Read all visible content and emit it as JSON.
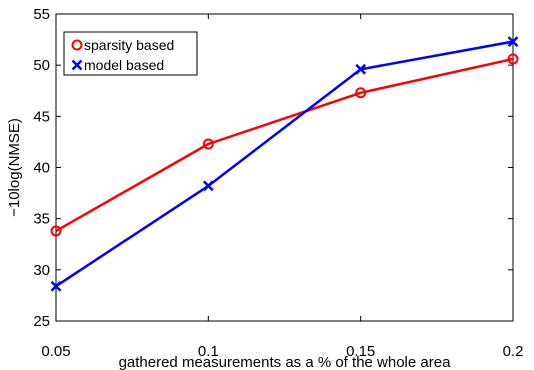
{
  "chart_data": {
    "type": "line",
    "title": "",
    "xlabel": "gathered measurements as a % of the whole area",
    "ylabel": "−10log(NMSE)",
    "x": [
      0.05,
      0.1,
      0.15,
      0.2
    ],
    "x_tick_labels": [
      "0.05",
      "0.1",
      "0.15",
      "0.2"
    ],
    "y_tick_labels": [
      "25",
      "30",
      "35",
      "40",
      "45",
      "50",
      "55"
    ],
    "xlim": [
      0.05,
      0.2
    ],
    "ylim": [
      25,
      55
    ],
    "grid": false,
    "legend_position": "top-left",
    "series": [
      {
        "name": "sparsity based",
        "values": [
          33.8,
          42.3,
          47.3,
          50.6
        ],
        "color": "#ff0000",
        "marker": "circle"
      },
      {
        "name": "model based",
        "values": [
          28.4,
          38.2,
          49.6,
          52.3
        ],
        "color": "#0000ff",
        "marker": "x"
      }
    ]
  }
}
